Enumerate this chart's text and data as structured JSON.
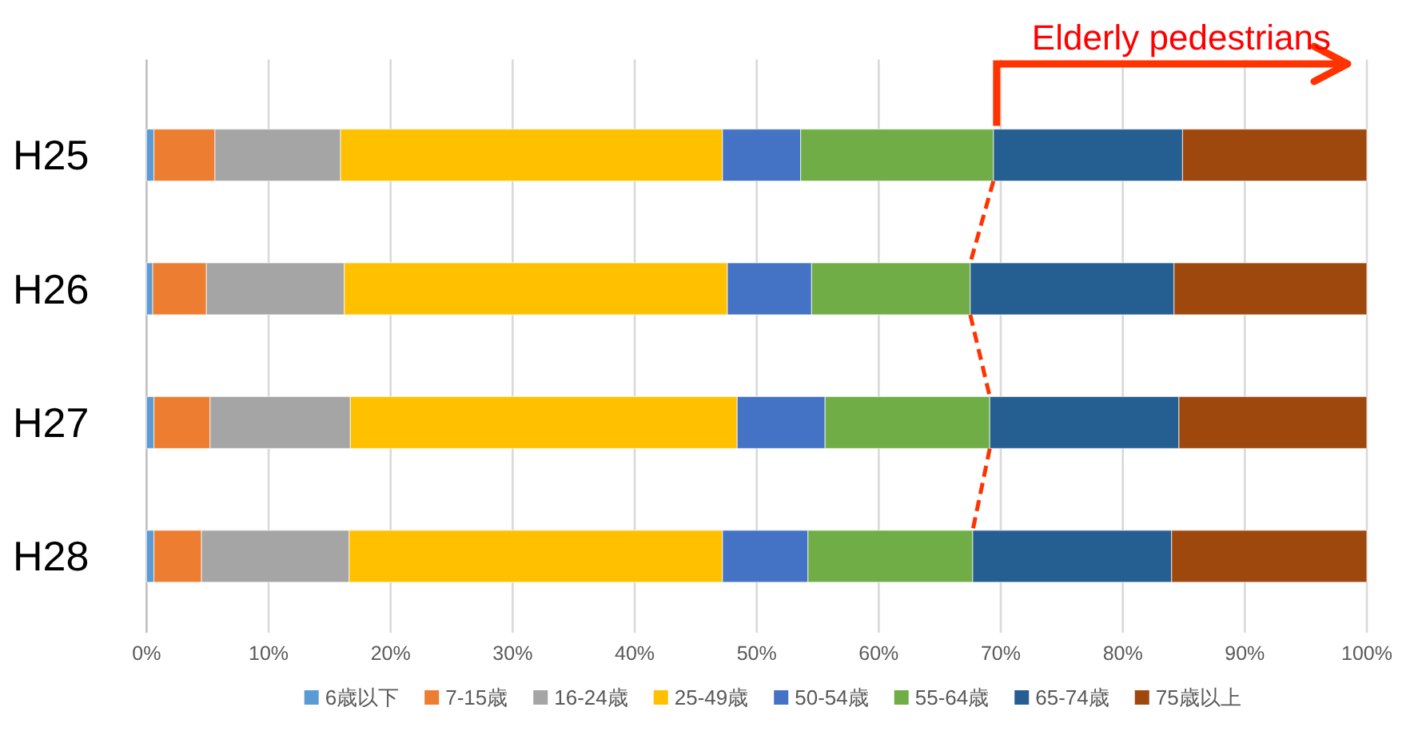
{
  "chart_data": {
    "type": "bar",
    "orientation": "horizontal",
    "stacked": true,
    "categories": [
      "H25",
      "H26",
      "H27",
      "H28"
    ],
    "series": [
      {
        "name": "6歳以下",
        "color": "#5b9bd5",
        "values": [
          0.6,
          0.5,
          0.6,
          0.6
        ]
      },
      {
        "name": "7-15歳",
        "color": "#ed7d31",
        "values": [
          5.0,
          4.4,
          4.6,
          3.9
        ]
      },
      {
        "name": "16-24歳",
        "color": "#a5a5a5",
        "values": [
          10.3,
          11.3,
          11.5,
          12.1
        ]
      },
      {
        "name": "25-49歳",
        "color": "#ffc000",
        "values": [
          31.3,
          31.4,
          31.7,
          30.6
        ]
      },
      {
        "name": "50-54歳",
        "color": "#4472c4",
        "values": [
          6.4,
          6.9,
          7.2,
          7.0
        ]
      },
      {
        "name": "55-64歳",
        "color": "#70ad47",
        "values": [
          15.8,
          13.0,
          13.5,
          13.5
        ]
      },
      {
        "name": "65-74歳",
        "color": "#255e91",
        "values": [
          15.5,
          16.7,
          15.5,
          16.3
        ]
      },
      {
        "name": "75歳以上",
        "color": "#9e480e",
        "values": [
          15.1,
          15.8,
          15.4,
          16.0
        ]
      }
    ],
    "xlim": [
      0,
      100
    ],
    "xticks": [
      {
        "value": 0,
        "label": "0%"
      },
      {
        "value": 10,
        "label": "10%"
      },
      {
        "value": 20,
        "label": "20%"
      },
      {
        "value": 30,
        "label": "30%"
      },
      {
        "value": 40,
        "label": "40%"
      },
      {
        "value": 50,
        "label": "50%"
      },
      {
        "value": 60,
        "label": "60%"
      },
      {
        "value": 70,
        "label": "70%"
      },
      {
        "value": 80,
        "label": "80%"
      },
      {
        "value": 90,
        "label": "90%"
      },
      {
        "value": 100,
        "label": "100%"
      }
    ],
    "grid": "x",
    "legend": "bottom",
    "annotations": [
      {
        "text": "Elderly pedestrians",
        "x": 69.4,
        "y": "H25"
      }
    ]
  }
}
